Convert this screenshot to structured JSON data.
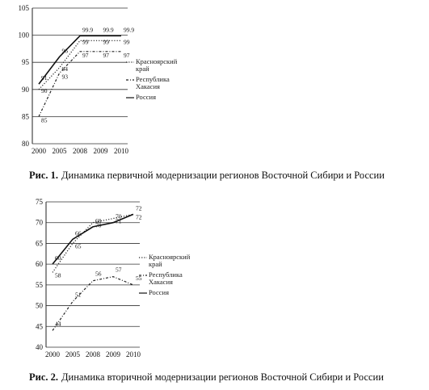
{
  "chart_data": [
    {
      "type": "line",
      "figure_label": "Рис. 1.",
      "caption": "Динамика первичной модернизации регионов Восточной Сибири и России",
      "categories": [
        "2000",
        "2005",
        "2008",
        "2009",
        "2010"
      ],
      "ylim": [
        80,
        105
      ],
      "yticks": [
        80,
        85,
        90,
        95,
        100,
        105
      ],
      "grid": true,
      "series": [
        {
          "name": "Красноярский край",
          "color": "#222",
          "dash": "dotted",
          "values": [
            90,
            94,
            99,
            99,
            99
          ]
        },
        {
          "name": "Республика Хакасия",
          "color": "#222",
          "dash": "dashdot",
          "values": [
            85,
            93,
            97,
            97,
            97
          ]
        },
        {
          "name": "Россия",
          "color": "#111",
          "dash": "solid",
          "values": [
            91,
            96,
            99.9,
            99.9,
            99.9
          ]
        }
      ]
    },
    {
      "type": "line",
      "figure_label": "Рис. 2.",
      "caption": "Динамика вторичной модернизации регионов Восточной Сибири и России",
      "categories": [
        "2000",
        "2005",
        "2008",
        "2009",
        "2010"
      ],
      "ylim": [
        40,
        75
      ],
      "yticks": [
        40,
        45,
        50,
        55,
        60,
        65,
        70,
        75
      ],
      "grid": true,
      "series": [
        {
          "name": "Красноярский край",
          "color": "#222",
          "dash": "dotted",
          "values": [
            58,
            65,
            70,
            71,
            72
          ]
        },
        {
          "name": "Республика Хакасия",
          "color": "#222",
          "dash": "dashdot",
          "values": [
            44,
            51,
            56,
            57,
            55
          ]
        },
        {
          "name": "Россия",
          "color": "#111",
          "dash": "solid",
          "values": [
            60,
            66,
            69,
            70,
            72
          ]
        }
      ]
    }
  ]
}
